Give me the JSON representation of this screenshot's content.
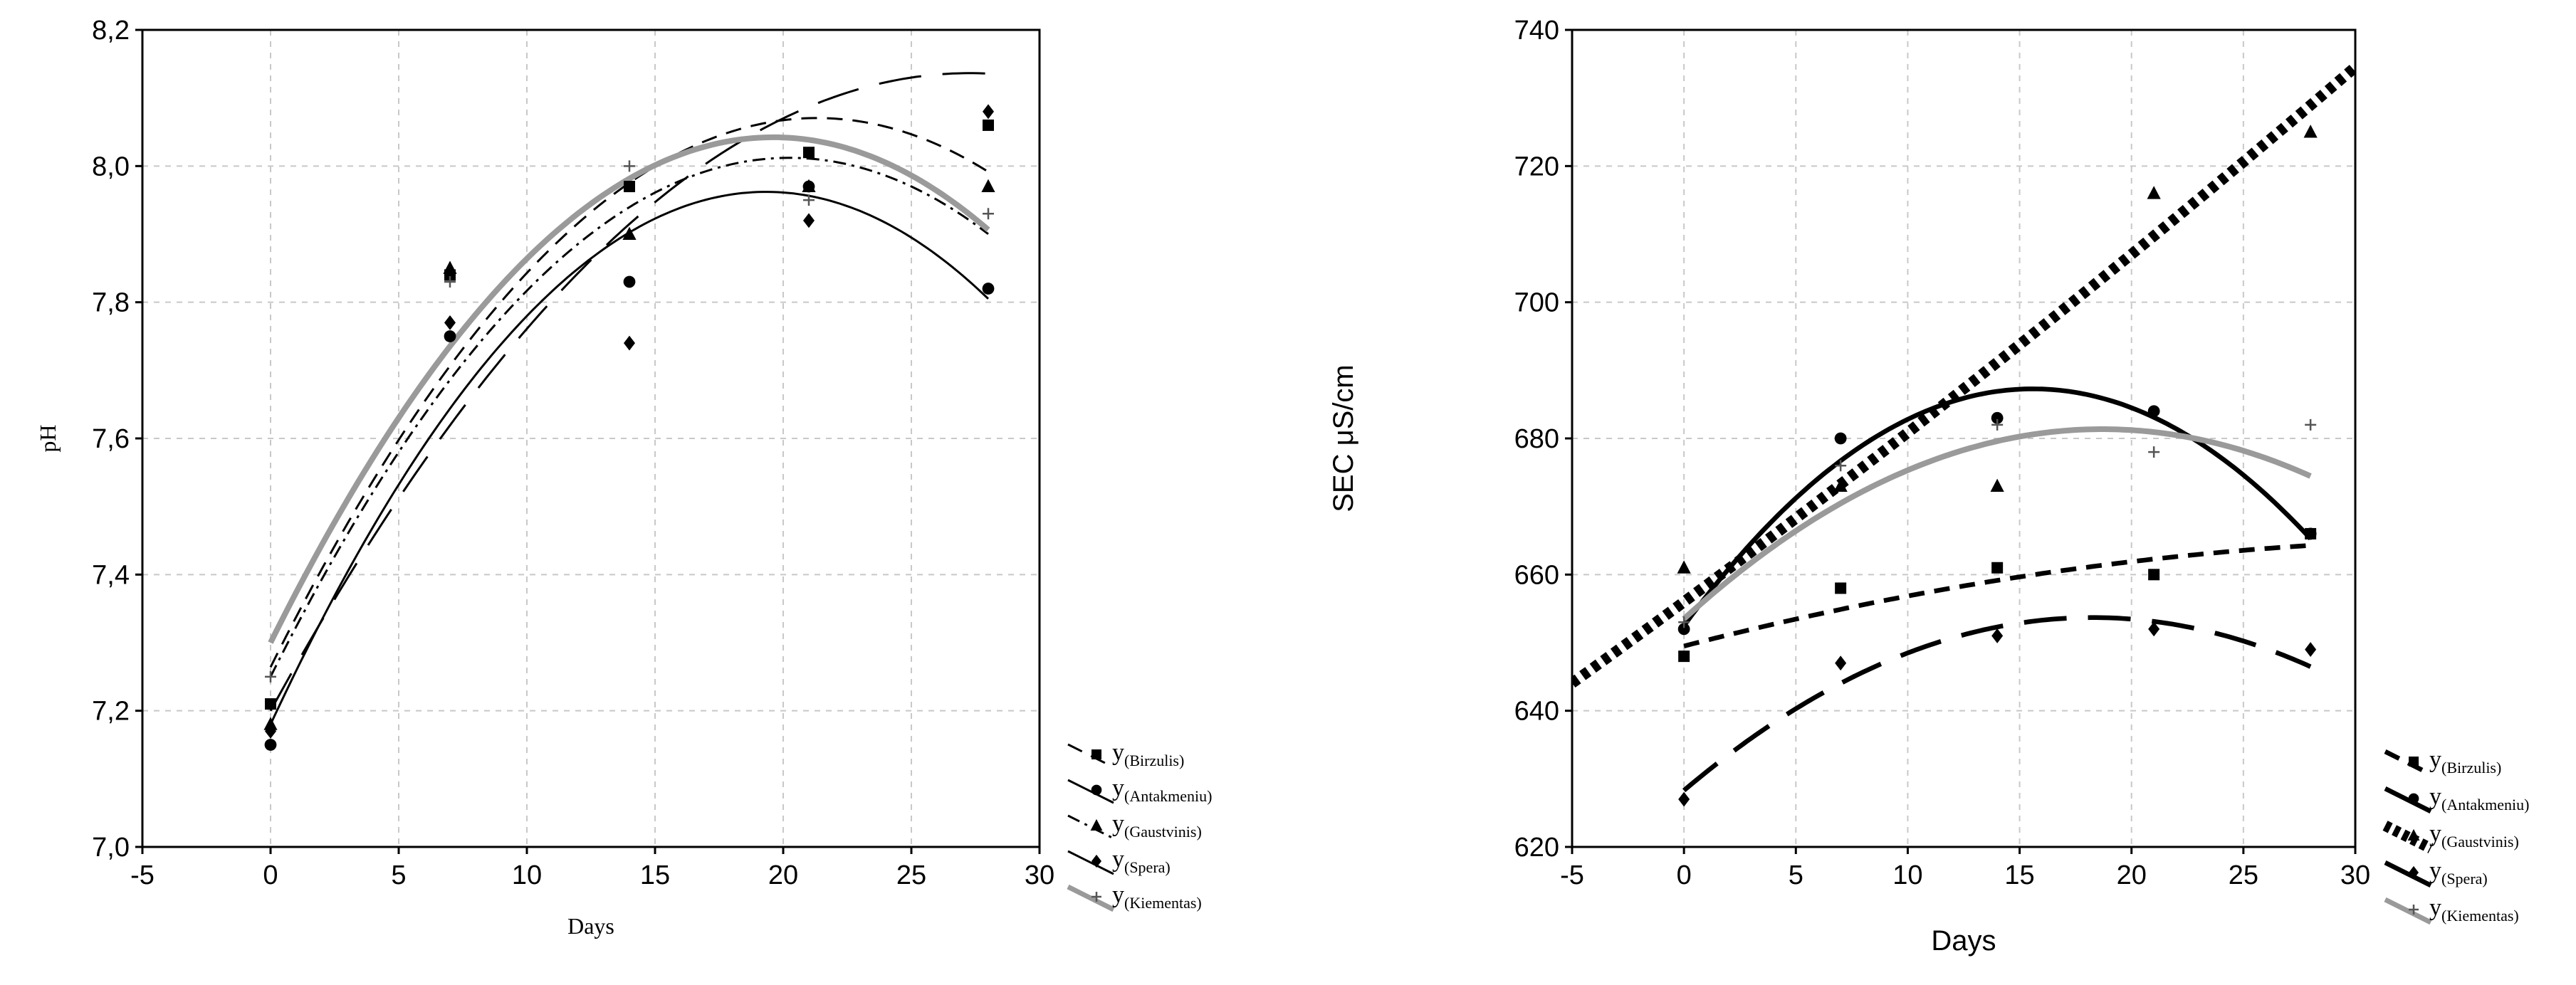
{
  "chart_data": [
    {
      "type": "scatter",
      "title": "",
      "xlabel": "Days",
      "ylabel": "pH",
      "xlim": [
        -5,
        30
      ],
      "ylim": [
        7.0,
        8.2
      ],
      "x_ticks": [
        "-5",
        "0",
        "5",
        "10",
        "15",
        "20",
        "25",
        "30"
      ],
      "y_ticks": [
        "7,0",
        "7,2",
        "7,4",
        "7,6",
        "7,8",
        "8,0",
        "8,2"
      ],
      "grid": true,
      "legend_position": "bottom-right outside",
      "legend_prefix": "y",
      "series": [
        {
          "name": "Birzulis",
          "marker": "square",
          "line": "dashed",
          "points": [
            [
              0,
              7.21
            ],
            [
              7,
              7.84
            ],
            [
              14,
              7.97
            ],
            [
              21,
              8.02
            ],
            [
              28,
              8.06
            ]
          ],
          "fit": [
            7.264,
            0.07563,
            -0.001773
          ]
        },
        {
          "name": "Antakmeniu",
          "marker": "circle",
          "line": "solid",
          "points": [
            [
              0,
              7.15
            ],
            [
              7,
              7.75
            ],
            [
              14,
              7.83
            ],
            [
              21,
              7.97
            ],
            [
              28,
              7.82
            ]
          ],
          "fit": [
            7.18,
            0.0809,
            -0.002092
          ]
        },
        {
          "name": "Gaustvinis",
          "marker": "triangle",
          "line": "dashdot",
          "points": [
            [
              0,
              7.18
            ],
            [
              7,
              7.85
            ],
            [
              14,
              7.9
            ],
            [
              21,
              7.97
            ],
            [
              28,
              7.97
            ]
          ],
          "fit": [
            7.25,
            0.0753,
            -0.00186
          ]
        },
        {
          "name": "Spera",
          "marker": "diamond",
          "line": "longdash",
          "points": [
            [
              0,
              7.17
            ],
            [
              7,
              7.77
            ],
            [
              14,
              7.74
            ],
            [
              21,
              7.92
            ],
            [
              28,
              8.08
            ]
          ],
          "fit": [
            7.2,
            0.0687,
            -0.00126
          ]
        },
        {
          "name": "Kiementas",
          "marker": "plus",
          "line": "gray-thick",
          "points": [
            [
              0,
              7.25
            ],
            [
              7,
              7.83
            ],
            [
              14,
              8.0
            ],
            [
              21,
              7.95
            ],
            [
              28,
              7.93
            ]
          ],
          "fit": [
            7.3,
            0.0757,
            -0.00193
          ]
        }
      ]
    },
    {
      "type": "scatter",
      "title": "",
      "xlabel": "Days",
      "ylabel": "SEC μS/cm",
      "xlim": [
        -5,
        30
      ],
      "ylim": [
        620,
        740
      ],
      "x_ticks": [
        "-5",
        "0",
        "5",
        "10",
        "15",
        "20",
        "25",
        "30"
      ],
      "y_ticks": [
        "620",
        "640",
        "660",
        "680",
        "700",
        "720",
        "740"
      ],
      "grid": true,
      "legend_position": "bottom-right outside",
      "legend_prefix": "y",
      "series": [
        {
          "name": "Birzulis",
          "marker": "square",
          "line": "dashed",
          "points": [
            [
              0,
              648
            ],
            [
              7,
              658
            ],
            [
              14,
              661
            ],
            [
              21,
              660
            ],
            [
              28,
              666
            ]
          ],
          "fit": [
            649.5,
            0.85,
            -0.0115
          ]
        },
        {
          "name": "Antakmeniu",
          "marker": "circle",
          "line": "solid",
          "points": [
            [
              0,
              652
            ],
            [
              7,
              680
            ],
            [
              14,
              683
            ],
            [
              21,
              684
            ],
            [
              28,
              666
            ]
          ],
          "fit": [
            652.5,
            4.46,
            -0.143
          ]
        },
        {
          "name": "Gaustvinis",
          "marker": "triangle",
          "line": "dotted",
          "points": [
            [
              0,
              661
            ],
            [
              7,
              673
            ],
            [
              14,
              673
            ],
            [
              21,
              716
            ],
            [
              28,
              725
            ]
          ],
          "fit": [
            656,
            2.42,
            0.0066
          ]
        },
        {
          "name": "Spera",
          "marker": "diamond",
          "line": "longdash",
          "points": [
            [
              0,
              627
            ],
            [
              7,
              647
            ],
            [
              14,
              651
            ],
            [
              21,
              652
            ],
            [
              28,
              649
            ]
          ],
          "fit": [
            628.3,
            2.78,
            -0.0761
          ]
        },
        {
          "name": "Kiementas",
          "marker": "plus",
          "line": "gray-thick",
          "points": [
            [
              0,
              653
            ],
            [
              7,
              676
            ],
            [
              14,
              682
            ],
            [
              21,
              678
            ],
            [
              28,
              682
            ]
          ],
          "fit": [
            653.5,
            2.98,
            -0.0797
          ]
        }
      ]
    }
  ]
}
